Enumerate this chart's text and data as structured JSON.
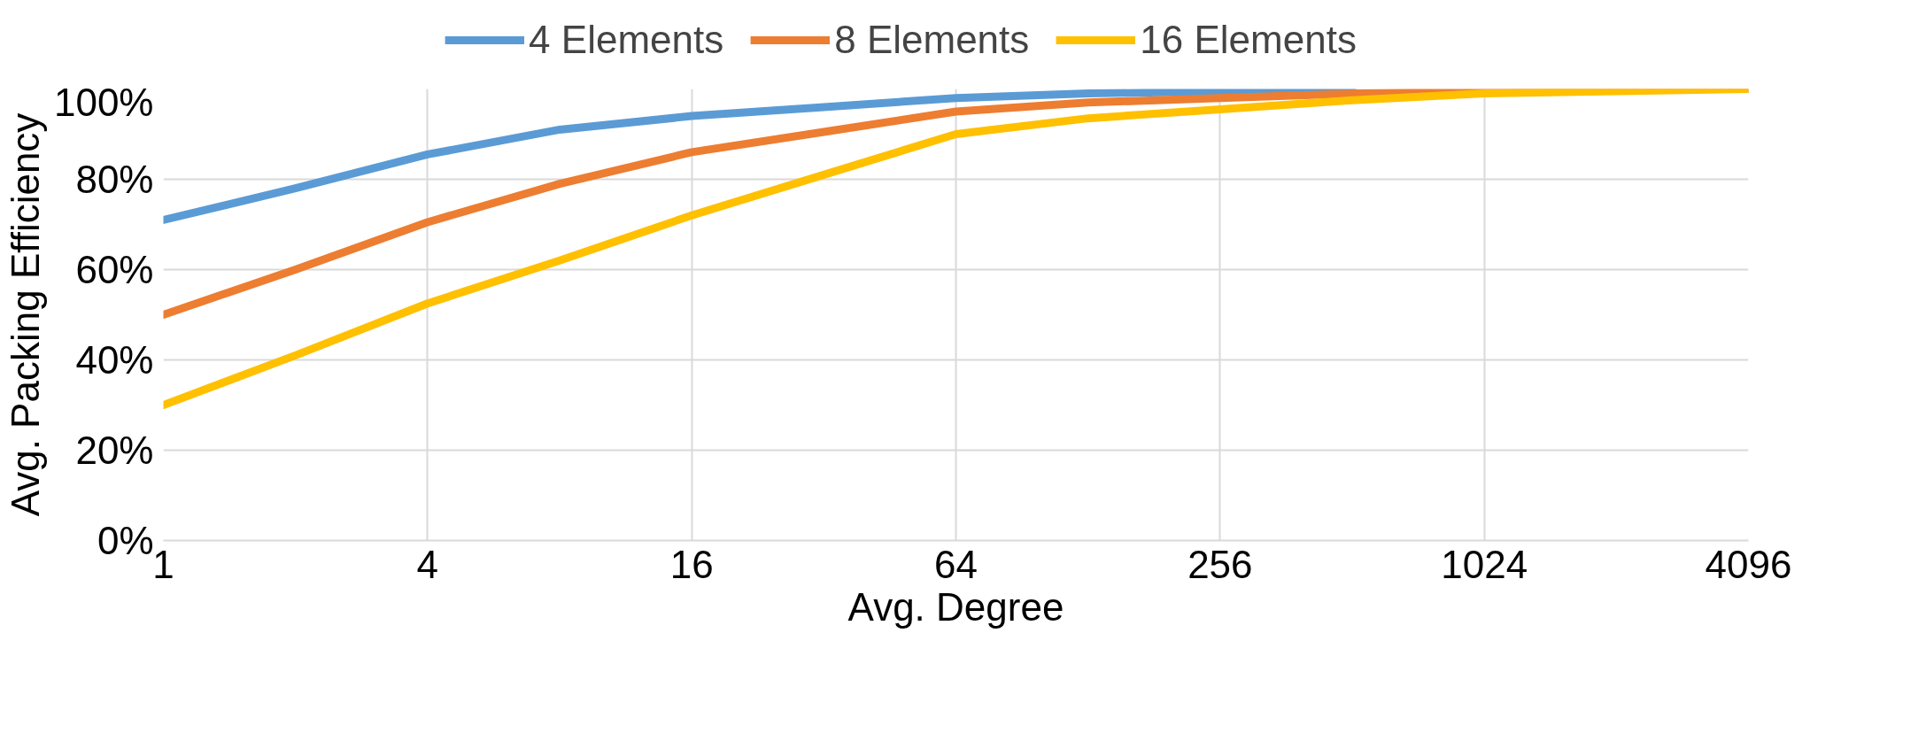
{
  "chart_data": {
    "type": "line",
    "xlabel": "Avg. Degree",
    "ylabel": "Avg. Packing Efficiency",
    "x": [
      1,
      2,
      4,
      8,
      16,
      32,
      64,
      128,
      256,
      512,
      1024,
      2048,
      4096
    ],
    "series": [
      {
        "name": "4 Elements",
        "color": "#5b9bd5",
        "values": [
          71,
          78,
          85.5,
          91,
          94,
          96,
          98,
          99,
          99.5,
          99.8,
          null,
          null,
          null
        ]
      },
      {
        "name": "8 Elements",
        "color": "#ed7d31",
        "values": [
          50,
          60,
          70.5,
          79,
          86,
          90.5,
          95,
          97,
          98,
          99,
          99.5,
          100,
          100
        ]
      },
      {
        "name": "16 Elements",
        "color": "#ffc000",
        "values": [
          30,
          41,
          52.5,
          62,
          72,
          81,
          90,
          93.5,
          95.5,
          97.5,
          99,
          99.5,
          100
        ]
      }
    ],
    "log": "x",
    "xlim": [
      1,
      4096
    ],
    "xticks": [
      1,
      4,
      16,
      64,
      256,
      1024,
      4096
    ],
    "ylim": [
      0,
      100
    ],
    "yticks": [
      {
        "value": 0,
        "label": "0%"
      },
      {
        "value": 20,
        "label": "20%"
      },
      {
        "value": 40,
        "label": "40%"
      },
      {
        "value": 60,
        "label": "60%"
      },
      {
        "value": 80,
        "label": "80%"
      },
      {
        "value": 100,
        "label": "100%"
      }
    ],
    "grid": true,
    "legend": "top",
    "line_style": "solid",
    "marker": "none"
  }
}
